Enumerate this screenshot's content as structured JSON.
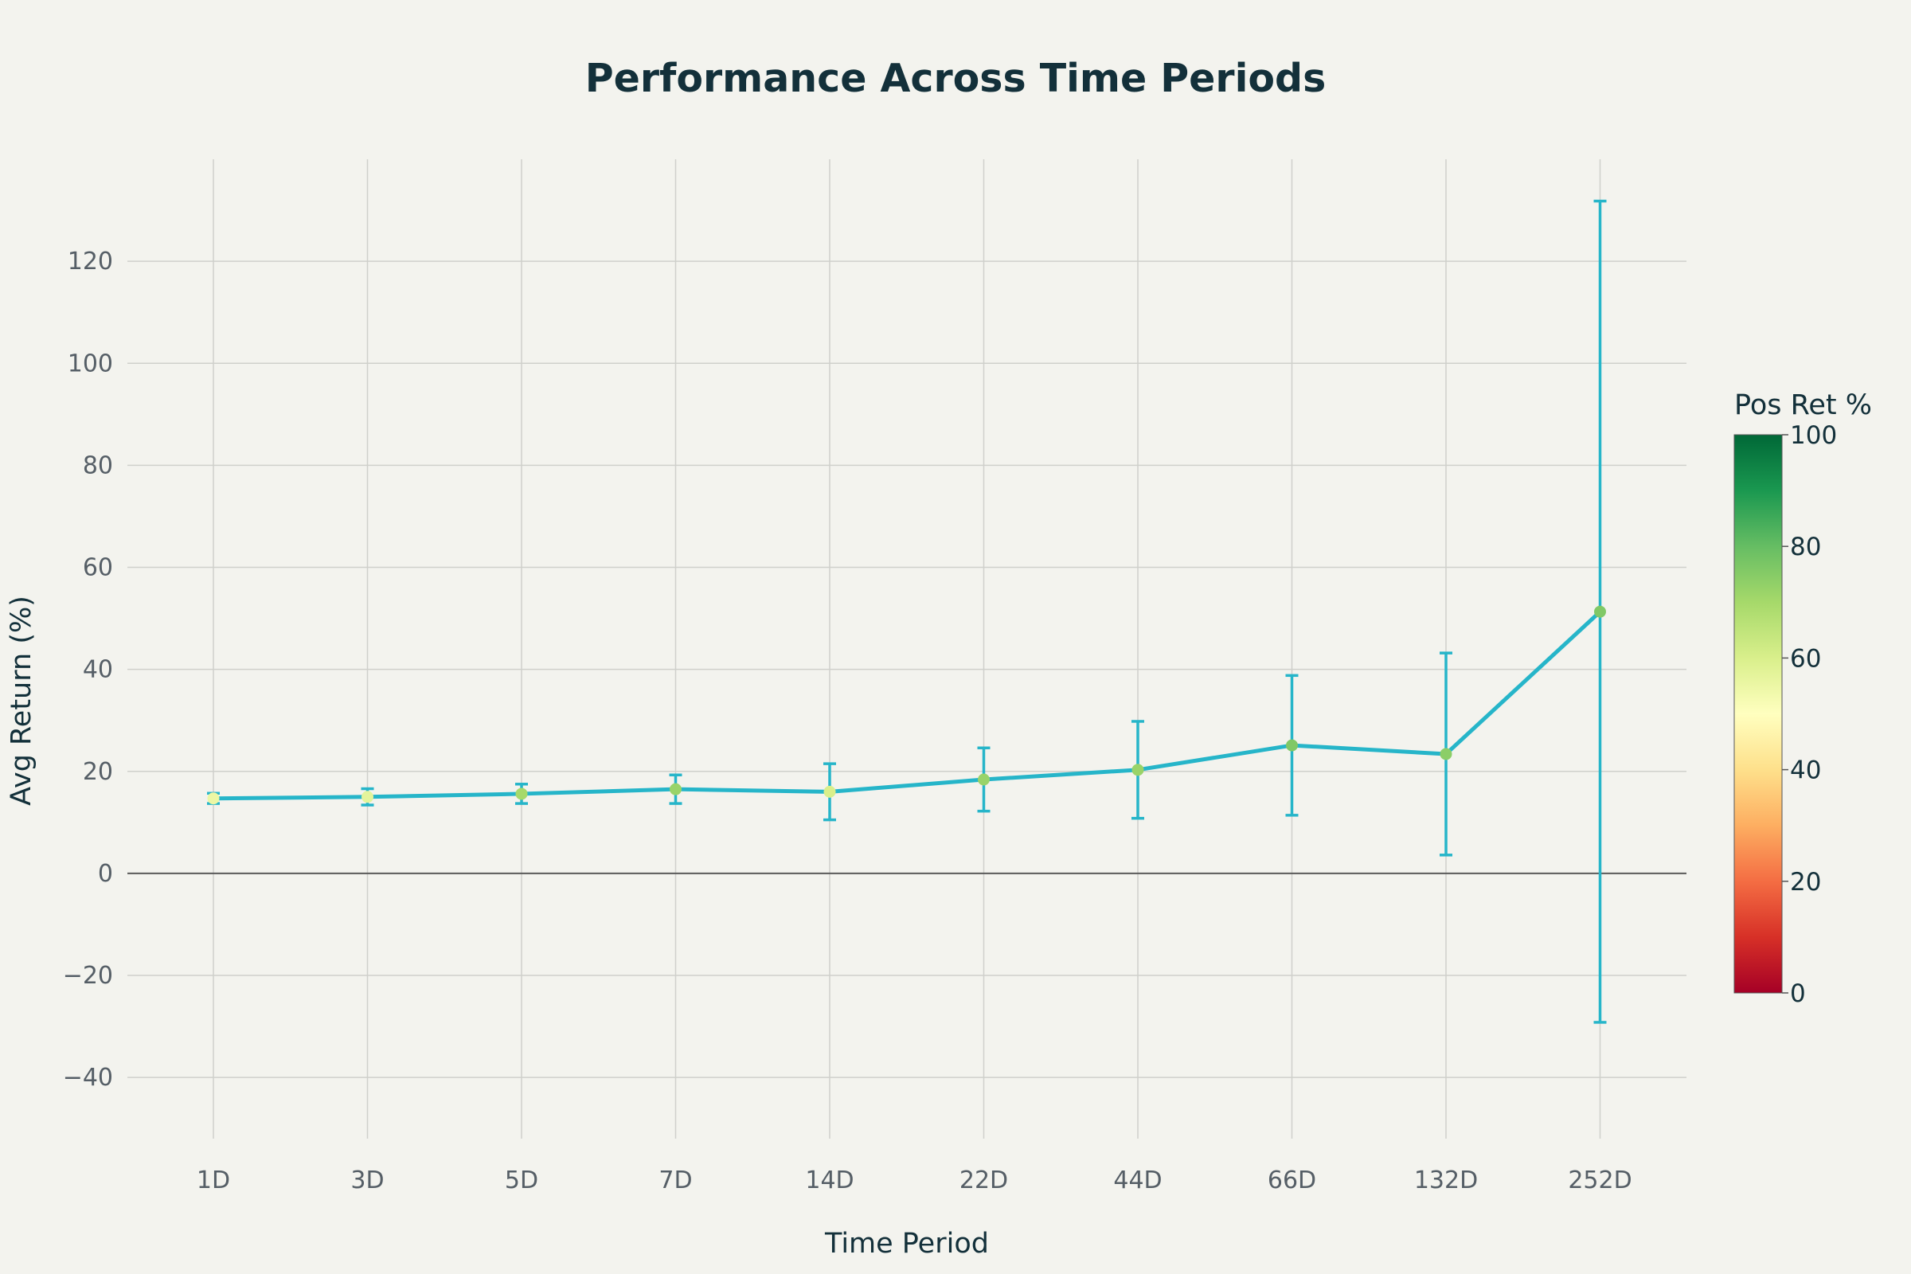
{
  "chart_data": {
    "type": "line",
    "title": "Performance Across Time Periods",
    "xlabel": "Time Period",
    "ylabel": "Avg Return (%)",
    "categories": [
      "1D",
      "3D",
      "5D",
      "7D",
      "14D",
      "22D",
      "44D",
      "66D",
      "132D",
      "252D"
    ],
    "series": [
      {
        "values": [
          14.7,
          15.0,
          15.6,
          16.5,
          16.0,
          18.4,
          20.3,
          25.1,
          23.4,
          51.3
        ],
        "error_upper": [
          15.7,
          16.6,
          17.5,
          19.3,
          21.5,
          24.6,
          29.8,
          38.8,
          43.2,
          131.8
        ],
        "error_lower": [
          13.7,
          13.4,
          13.7,
          13.7,
          10.5,
          12.2,
          10.8,
          11.4,
          3.6,
          -29.2
        ],
        "pos_ret_pct": [
          55,
          57,
          70,
          72,
          60,
          72,
          72,
          76,
          74,
          76
        ]
      }
    ],
    "ylim": [
      -52,
      140
    ],
    "yticks": [
      -40,
      -20,
      0,
      20,
      40,
      60,
      80,
      100,
      120
    ],
    "yticklabels": [
      "−40",
      "−20",
      "0",
      "20",
      "40",
      "60",
      "80",
      "100",
      "120"
    ],
    "grid": true,
    "colorbar": {
      "title": "Pos Ret %",
      "range": [
        0,
        100
      ],
      "ticks": [
        "0",
        "20",
        "40",
        "60",
        "80",
        "100"
      ],
      "colorscale": [
        "#a50026",
        "#d73027",
        "#f46d43",
        "#fdae61",
        "#fee08b",
        "#ffffbf",
        "#d9ef8b",
        "#a6d96a",
        "#66bd63",
        "#1a9850",
        "#006837"
      ]
    },
    "colors": {
      "line": "#26b5c9",
      "background": "#f3f3ee"
    }
  }
}
